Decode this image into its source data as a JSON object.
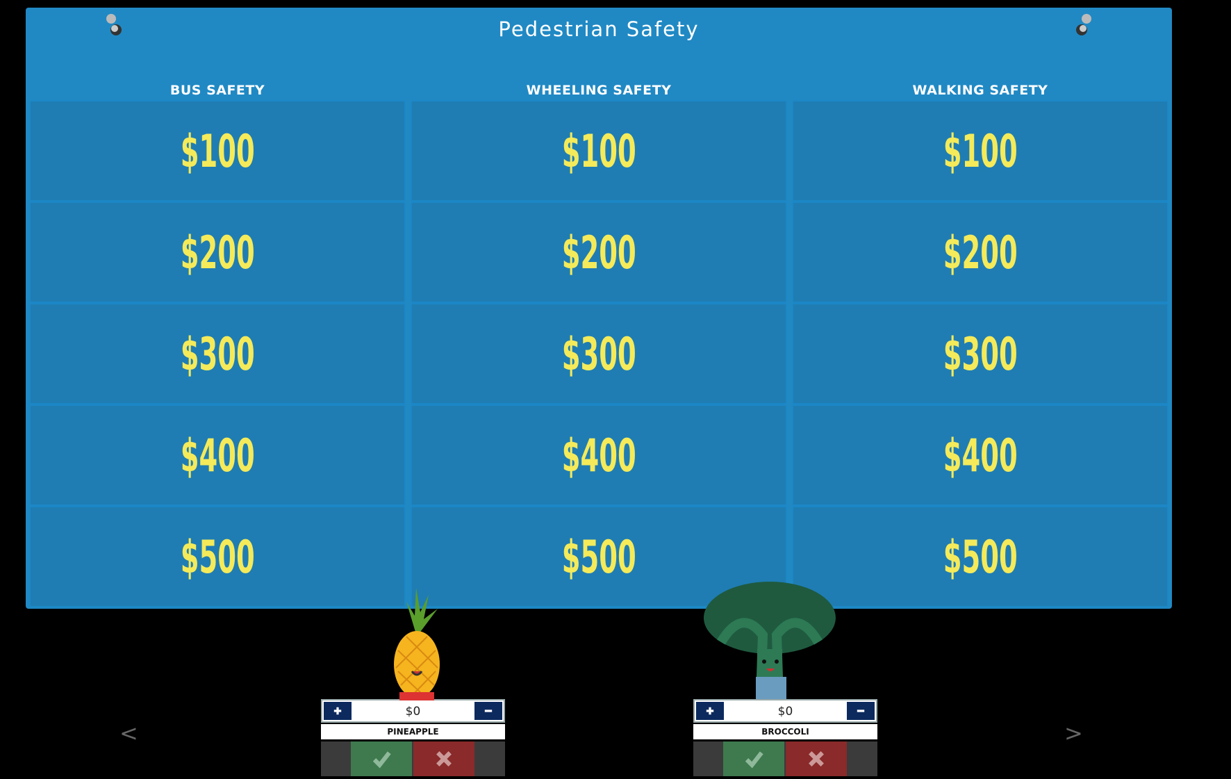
{
  "header": {
    "title": "Pedestrian Safety"
  },
  "board": {
    "categories": [
      {
        "name": "BUS SAFETY",
        "values": [
          "$100",
          "$200",
          "$300",
          "$400",
          "$500"
        ]
      },
      {
        "name": "WHEELING SAFETY",
        "values": [
          "$100",
          "$200",
          "$300",
          "$400",
          "$500"
        ]
      },
      {
        "name": "WALKING SAFETY",
        "values": [
          "$100",
          "$200",
          "$300",
          "$400",
          "$500"
        ]
      }
    ]
  },
  "players": [
    {
      "name": "PINEAPPLE",
      "score": "$0"
    },
    {
      "name": "BROCCOLI",
      "score": "$0"
    }
  ],
  "nav": {
    "prev": "<",
    "next": ">"
  }
}
